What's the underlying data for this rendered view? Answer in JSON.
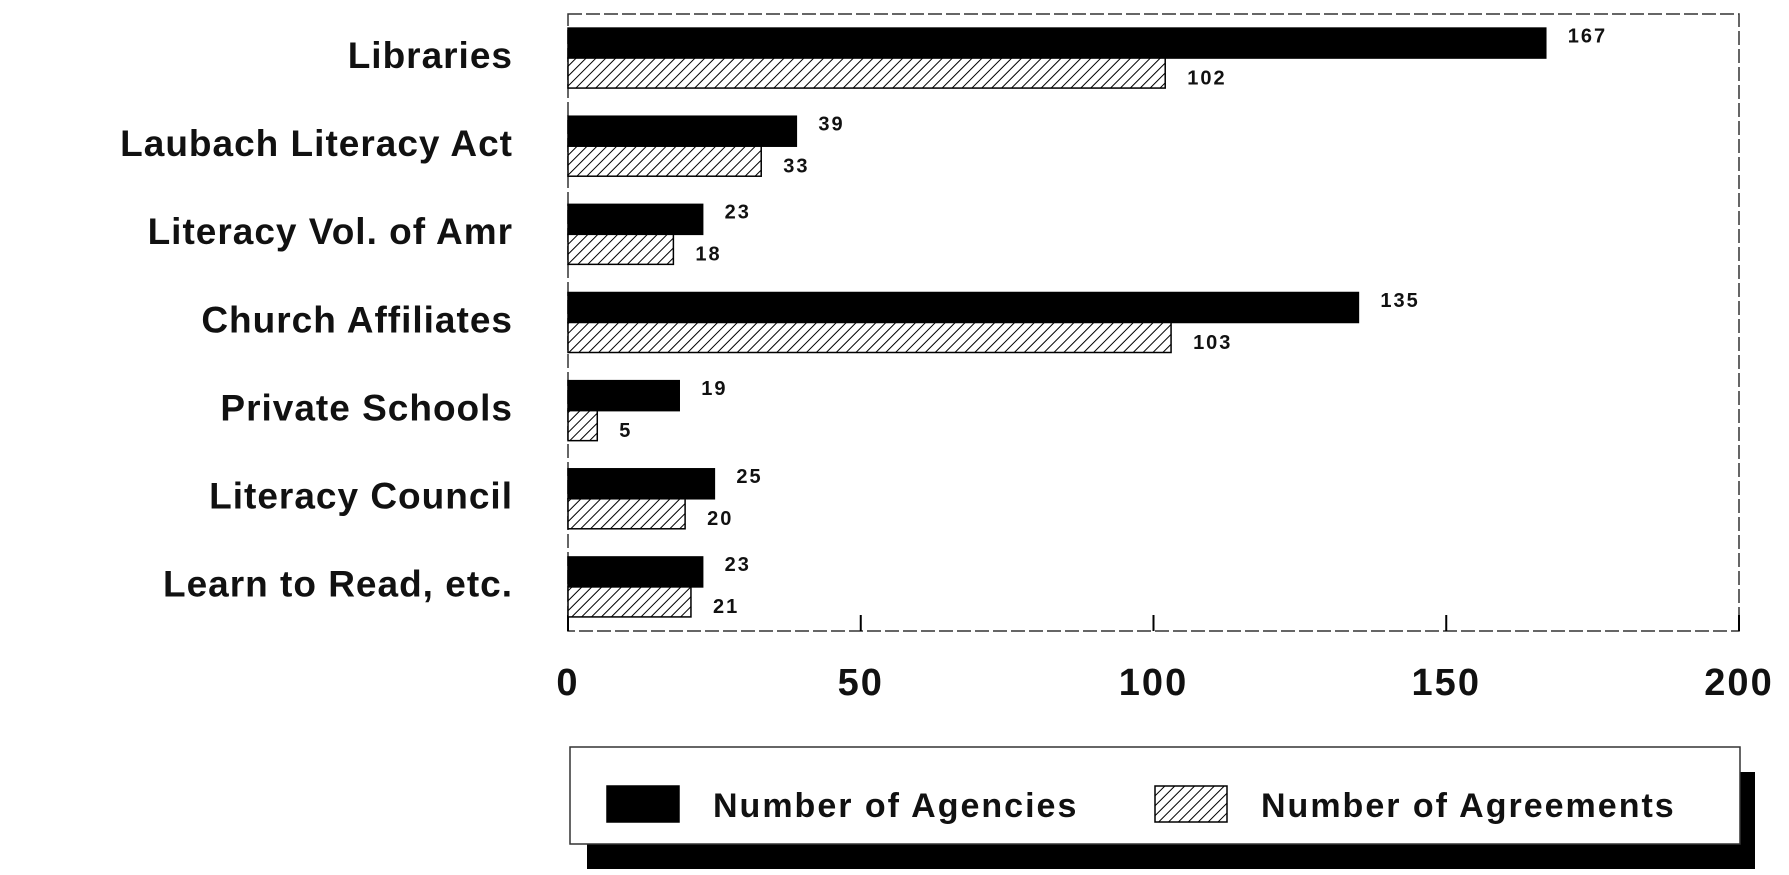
{
  "chart_data": {
    "type": "bar",
    "orientation": "horizontal",
    "categories": [
      "Libraries",
      "Laubach Literacy Act",
      "Literacy Vol. of Amr",
      "Church Affiliates",
      "Private Schools",
      "Literacy Council",
      "Learn to Read, etc."
    ],
    "series": [
      {
        "name": "Number of Agencies",
        "color": "#000000",
        "values": [
          167,
          39,
          23,
          135,
          19,
          25,
          23
        ]
      },
      {
        "name": "Number of Agreements",
        "color": "#000000",
        "hatch": true,
        "values": [
          102,
          33,
          18,
          103,
          5,
          20,
          21
        ]
      }
    ],
    "xlim": [
      0,
      200
    ],
    "xticks": [
      0,
      50,
      100,
      150,
      200
    ],
    "grid": false,
    "legend": "bottom"
  }
}
